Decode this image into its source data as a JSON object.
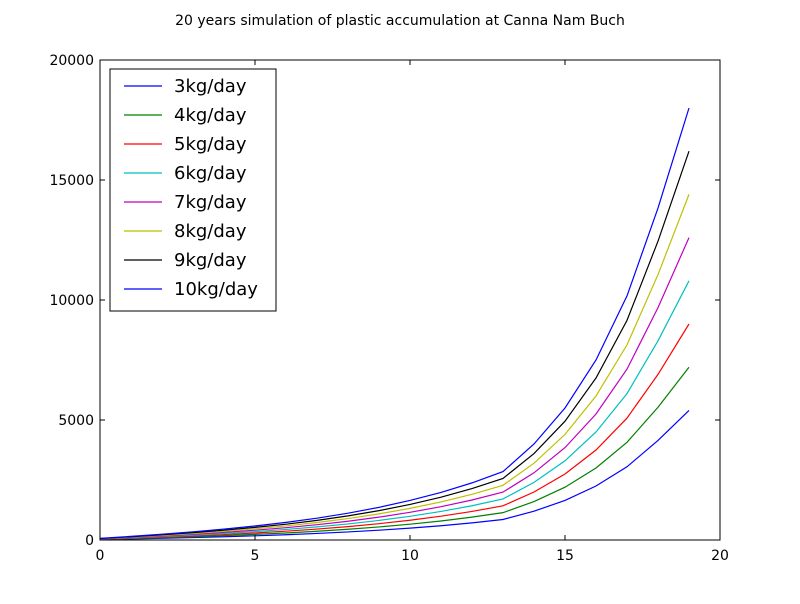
{
  "chart_data": {
    "type": "line",
    "title": "20 years simulation of plastic accumulation at Canna Nam Buch",
    "xlabel": "",
    "ylabel": "",
    "xlim": [
      0,
      20
    ],
    "ylim": [
      0,
      20000
    ],
    "xticks": [
      0,
      5,
      10,
      15,
      20
    ],
    "yticks": [
      0,
      5000,
      10000,
      15000,
      20000
    ],
    "grid": false,
    "legend_position": "top-left",
    "x": [
      0,
      1,
      2,
      3,
      4,
      5,
      6,
      7,
      8,
      9,
      10,
      11,
      12,
      13,
      14,
      15,
      16,
      17,
      18,
      19
    ],
    "series": [
      {
        "name": "3kg/day",
        "color": "#0000ff",
        "values": [
          20,
          45,
          72,
          102,
          136,
          175,
          220,
          273,
          335,
          408,
          494,
          595,
          714,
          855,
          1200,
          1650,
          2250,
          3050,
          4150,
          5400
        ]
      },
      {
        "name": "4kg/day",
        "color": "#008000",
        "values": [
          27,
          60,
          96,
          136,
          181,
          233,
          293,
          364,
          447,
          544,
          659,
          793,
          952,
          1140,
          1600,
          2200,
          3000,
          4070,
          5530,
          7200
        ]
      },
      {
        "name": "5kg/day",
        "color": "#ff0000",
        "values": [
          33,
          75,
          120,
          170,
          227,
          292,
          367,
          455,
          558,
          680,
          823,
          991,
          1190,
          1425,
          2000,
          2750,
          3750,
          5080,
          6900,
          9000
        ]
      },
      {
        "name": "6kg/day",
        "color": "#00bfbf",
        "values": [
          40,
          90,
          144,
          204,
          272,
          350,
          440,
          546,
          670,
          816,
          988,
          1190,
          1428,
          1710,
          2400,
          3300,
          4500,
          6100,
          8300,
          10800
        ]
      },
      {
        "name": "7kg/day",
        "color": "#bf00bf",
        "values": [
          47,
          105,
          168,
          238,
          317,
          408,
          513,
          637,
          782,
          952,
          1153,
          1388,
          1666,
          1995,
          2800,
          3850,
          5250,
          7120,
          9680,
          12600
        ]
      },
      {
        "name": "8kg/day",
        "color": "#bfbf00",
        "values": [
          53,
          120,
          192,
          272,
          363,
          467,
          587,
          728,
          893,
          1088,
          1317,
          1587,
          1904,
          2280,
          3200,
          4400,
          6000,
          8130,
          11060,
          14400
        ]
      },
      {
        "name": "9kg/day",
        "color": "#000000",
        "values": [
          60,
          135,
          216,
          306,
          408,
          525,
          660,
          819,
          1005,
          1224,
          1482,
          1785,
          2142,
          2565,
          3600,
          4950,
          6750,
          9150,
          12450,
          16200
        ]
      },
      {
        "name": "10kg/day",
        "color": "#0000ff",
        "values": [
          67,
          150,
          240,
          340,
          453,
          583,
          733,
          910,
          1117,
          1360,
          1647,
          1983,
          2380,
          2850,
          4000,
          5500,
          7500,
          10170,
          13830,
          18000
        ]
      }
    ]
  }
}
